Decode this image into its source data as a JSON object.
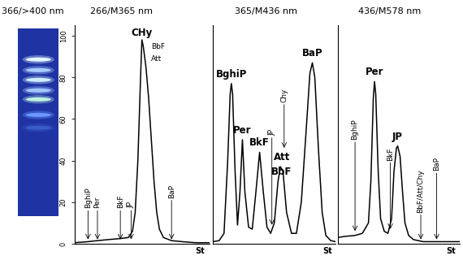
{
  "plate": {
    "title": "366/>400 nm",
    "background": "#1f33a3",
    "band_colors": [
      "#e4f8ff",
      "#a8ccff",
      "#cdeeff",
      "#a4c6ff",
      "#bff2e2",
      "#6a98ff",
      "#3a5cc8"
    ]
  },
  "chart_data": [
    {
      "type": "line",
      "title": "266/M365 nm",
      "color": "#000000",
      "x": [
        0,
        10,
        17,
        25,
        34,
        40,
        43,
        45,
        47,
        49,
        50,
        51,
        53,
        55,
        57,
        59,
        61,
        63,
        66,
        72,
        80,
        90,
        100
      ],
      "values": [
        0.5,
        1,
        1.5,
        2,
        2.5,
        3,
        6,
        15,
        40,
        80,
        98,
        95,
        85,
        70,
        50,
        30,
        15,
        7,
        3,
        1.5,
        1,
        0.5,
        0.5
      ],
      "xlim": [
        0,
        100
      ],
      "ylim": [
        0,
        105
      ],
      "xticks": [],
      "yticks": [
        0,
        20,
        40,
        60,
        80,
        100
      ],
      "tick_labels": "y",
      "x_end_label": "St",
      "peak_labels": [
        {
          "text": "CHy",
          "x": 50,
          "y": 99
        }
      ],
      "side_labels": [
        {
          "text": "BbF",
          "x": 57,
          "y": 93
        },
        {
          "text": "Att",
          "x": 57,
          "y": 87
        }
      ],
      "arrow_labels": [
        {
          "text": "BghiP",
          "x": 10,
          "y": 17,
          "tip": 1
        },
        {
          "text": "Per",
          "x": 17,
          "y": 17,
          "tip": 1
        },
        {
          "text": "BkF",
          "x": 34,
          "y": 17,
          "tip": 1
        },
        {
          "text": "JP",
          "x": 42,
          "y": 17,
          "tip": 1
        },
        {
          "text": "BaP",
          "x": 72,
          "y": 22,
          "tip": 1
        }
      ]
    },
    {
      "type": "line",
      "title": "365/M436 nm",
      "color": "#000000",
      "x": [
        0,
        5,
        9,
        12,
        14,
        15,
        16,
        18,
        20,
        22,
        24,
        26,
        29,
        32,
        35,
        38,
        41,
        44,
        47,
        50,
        53,
        55,
        57,
        60,
        64,
        68,
        72,
        76,
        79,
        81,
        83,
        86,
        89,
        92,
        96,
        100
      ],
      "values": [
        1,
        1.5,
        5,
        40,
        72,
        77,
        72,
        35,
        9,
        25,
        50,
        25,
        8,
        7,
        25,
        44,
        25,
        8,
        5,
        10,
        30,
        37,
        35,
        15,
        5,
        5,
        20,
        55,
        82,
        87,
        80,
        45,
        15,
        4,
        1.5,
        1
      ],
      "xlim": [
        0,
        100
      ],
      "ylim": [
        0,
        105
      ],
      "xticks": [],
      "yticks": [],
      "tick_labels": false,
      "x_end_label": "St",
      "peak_labels": [
        {
          "text": "BghiP",
          "x": 15,
          "y": 79
        },
        {
          "text": "Per",
          "x": 24,
          "y": 52
        },
        {
          "text": "BkF",
          "x": 38,
          "y": 46
        },
        {
          "text": "Att",
          "x": 56,
          "y": 39
        },
        {
          "text": "BbF",
          "x": 56,
          "y": 32
        },
        {
          "text": "BaP",
          "x": 81,
          "y": 89
        }
      ],
      "side_labels": [],
      "arrow_labels": [
        {
          "text": "JP",
          "x": 48,
          "y": 52,
          "tip": 8
        },
        {
          "text": "Chy",
          "x": 58,
          "y": 68,
          "tip": 45
        }
      ]
    },
    {
      "type": "line",
      "title": "436/M578 nm",
      "color": "#000000",
      "x": [
        0,
        5,
        14,
        20,
        25,
        27,
        29,
        30,
        31,
        33,
        35,
        38,
        41,
        44,
        46,
        48,
        49,
        51,
        53,
        55,
        58,
        62,
        70,
        80,
        90,
        100
      ],
      "values": [
        3,
        3.5,
        4,
        5,
        10,
        30,
        70,
        78,
        72,
        35,
        12,
        6,
        5,
        12,
        35,
        46,
        47,
        42,
        25,
        10,
        4,
        2,
        1,
        1,
        1,
        1
      ],
      "xlim": [
        0,
        100
      ],
      "ylim": [
        0,
        105
      ],
      "xticks": [],
      "yticks": [],
      "tick_labels": false,
      "x_end_label": "St",
      "peak_labels": [
        {
          "text": "Per",
          "x": 30,
          "y": 80
        },
        {
          "text": "JP",
          "x": 49,
          "y": 49
        }
      ],
      "side_labels": [],
      "arrow_labels": [
        {
          "text": "BghiP",
          "x": 14,
          "y": 50,
          "tip": 5
        },
        {
          "text": "BkF",
          "x": 43,
          "y": 40,
          "tip": 6
        },
        {
          "text": "BbF/Att/Chy",
          "x": 68,
          "y": 15,
          "tip": 1
        },
        {
          "text": "BaP",
          "x": 81,
          "y": 35,
          "tip": 1
        }
      ]
    }
  ]
}
